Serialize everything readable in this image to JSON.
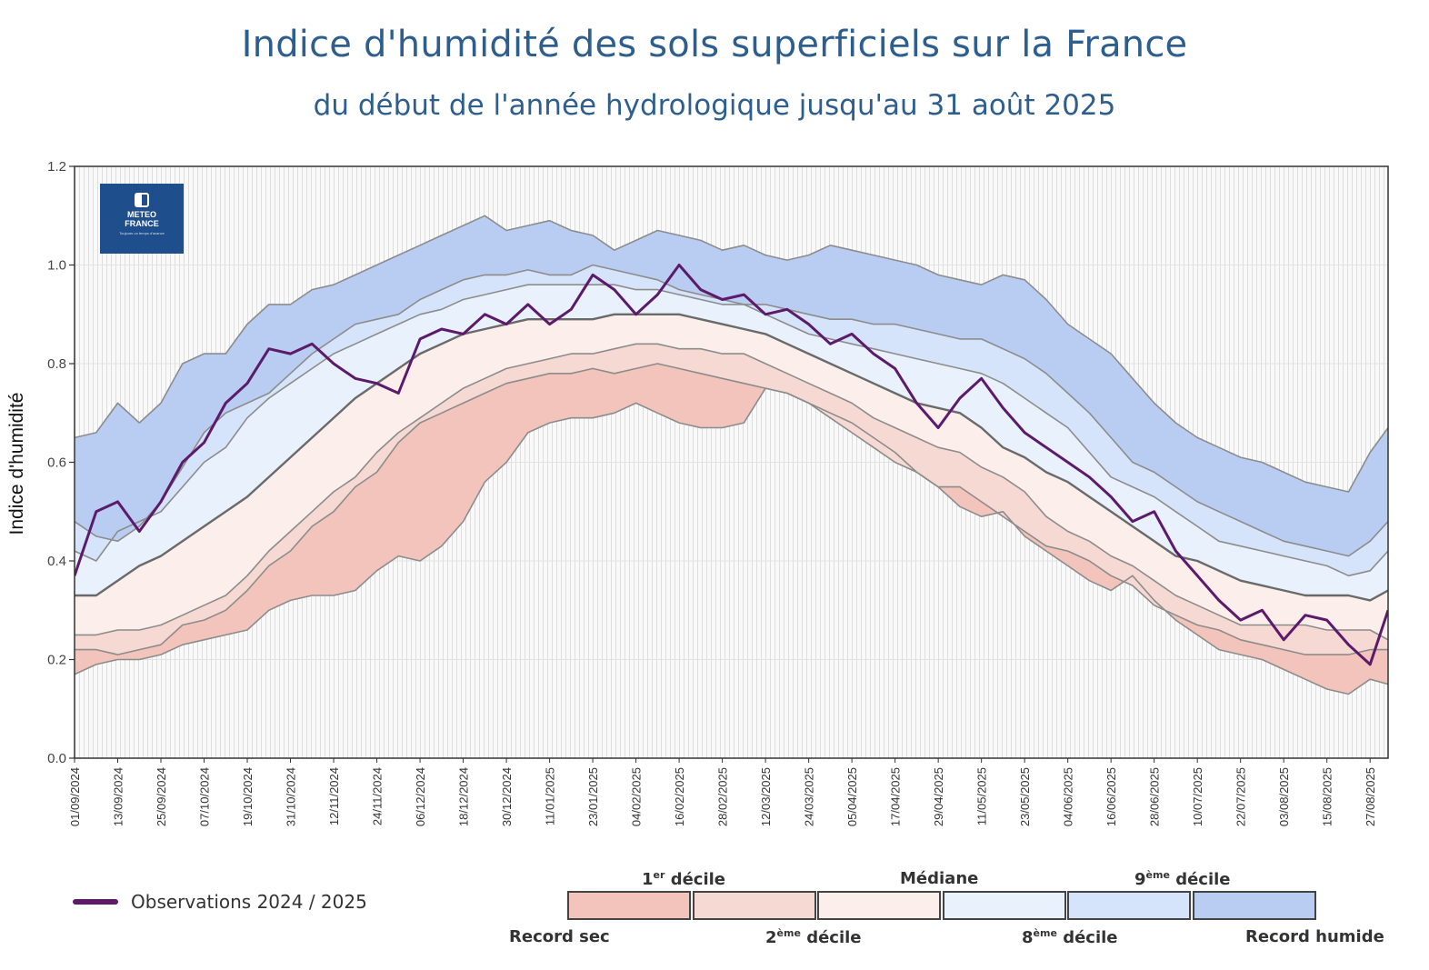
{
  "header": {
    "title": "Indice d'humidité des sols superficiels sur la France",
    "subtitle": "du début de l'année hydrologique jusqu'au 31 août 2025"
  },
  "logo": {
    "name_line1": "METEO",
    "name_line2": "FRANCE",
    "tagline": "Toujours un temps d'avance"
  },
  "colors": {
    "observation": "#5c1a6b",
    "record_sec": "#f2c4bb",
    "decile1_2": "#f6d9d2",
    "decile2_median": "#fcefeb",
    "median_decile8": "#e9f1fd",
    "decile8_9": "#d6e4fb",
    "decile9_record": "#b9cdf3",
    "band_line": "#6e6e6e"
  },
  "legend": {
    "observation_label": "Observations 2024 / 2025",
    "top_labels": [
      {
        "num": "1",
        "sup": "er",
        "text": " décile"
      },
      {
        "num": "",
        "sup": "",
        "text": "Médiane"
      },
      {
        "num": "9",
        "sup": "ème",
        "text": " décile"
      }
    ],
    "bottom_labels": [
      {
        "num": "",
        "sup": "",
        "text": "Record sec"
      },
      {
        "num": "2",
        "sup": "ème",
        "text": " décile"
      },
      {
        "num": "8",
        "sup": "ème",
        "text": " décile"
      },
      {
        "num": "",
        "sup": "",
        "text": "Record humide"
      }
    ]
  },
  "chart_data": {
    "type": "area",
    "title": "Indice d'humidité des sols superficiels sur la France",
    "subtitle": "du début de l'année hydrologique jusqu'au 31 août 2025",
    "xlabel": "",
    "ylabel": "Indice d'humidité",
    "ylim": [
      0.0,
      1.2
    ],
    "yticks": [
      "0.0",
      "0.2",
      "0.4",
      "0.6",
      "0.8",
      "1.0",
      "1.2"
    ],
    "x_day_range": [
      0,
      365
    ],
    "xtick_labels": [
      "01/09/2024",
      "13/09/2024",
      "25/09/2024",
      "07/10/2024",
      "19/10/2024",
      "31/10/2024",
      "12/11/2024",
      "24/11/2024",
      "06/12/2024",
      "18/12/2024",
      "30/12/2024",
      "11/01/2025",
      "23/01/2025",
      "04/02/2025",
      "16/02/2025",
      "28/02/2025",
      "12/03/2025",
      "24/03/2025",
      "05/04/2025",
      "17/04/2025",
      "29/04/2025",
      "11/05/2025",
      "23/05/2025",
      "04/06/2025",
      "16/06/2025",
      "28/06/2025",
      "10/07/2025",
      "22/07/2025",
      "03/08/2025",
      "15/08/2025",
      "27/08/2025"
    ],
    "grid": true,
    "legend_position": "bottom",
    "x_days": [
      0,
      6,
      12,
      18,
      24,
      30,
      36,
      42,
      48,
      54,
      60,
      66,
      72,
      78,
      84,
      90,
      96,
      102,
      108,
      114,
      120,
      126,
      132,
      138,
      144,
      150,
      156,
      162,
      168,
      174,
      180,
      186,
      192,
      198,
      204,
      210,
      216,
      222,
      228,
      234,
      240,
      246,
      252,
      258,
      264,
      270,
      276,
      282,
      288,
      294,
      300,
      306,
      312,
      318,
      324,
      330,
      336,
      342,
      348,
      354,
      360,
      365
    ],
    "series": [
      {
        "name": "Record sec",
        "values": [
          0.17,
          0.19,
          0.2,
          0.2,
          0.21,
          0.23,
          0.24,
          0.25,
          0.26,
          0.3,
          0.32,
          0.33,
          0.33,
          0.34,
          0.38,
          0.41,
          0.4,
          0.43,
          0.48,
          0.56,
          0.6,
          0.66,
          0.68,
          0.69,
          0.69,
          0.7,
          0.72,
          0.7,
          0.68,
          0.67,
          0.67,
          0.68,
          0.75,
          0.74,
          0.72,
          0.7,
          0.68,
          0.65,
          0.62,
          0.58,
          0.55,
          0.51,
          0.49,
          0.5,
          0.45,
          0.42,
          0.39,
          0.36,
          0.34,
          0.37,
          0.32,
          0.28,
          0.25,
          0.22,
          0.21,
          0.2,
          0.18,
          0.16,
          0.14,
          0.13,
          0.16,
          0.15
        ]
      },
      {
        "name": "1er décile",
        "values": [
          0.22,
          0.22,
          0.21,
          0.22,
          0.23,
          0.27,
          0.28,
          0.3,
          0.34,
          0.39,
          0.42,
          0.47,
          0.5,
          0.55,
          0.58,
          0.64,
          0.68,
          0.7,
          0.72,
          0.74,
          0.76,
          0.77,
          0.78,
          0.78,
          0.79,
          0.78,
          0.79,
          0.8,
          0.79,
          0.78,
          0.77,
          0.76,
          0.75,
          0.74,
          0.72,
          0.69,
          0.66,
          0.63,
          0.6,
          0.58,
          0.55,
          0.55,
          0.52,
          0.49,
          0.46,
          0.43,
          0.42,
          0.4,
          0.37,
          0.35,
          0.31,
          0.29,
          0.27,
          0.26,
          0.24,
          0.23,
          0.22,
          0.21,
          0.21,
          0.21,
          0.22,
          0.22
        ]
      },
      {
        "name": "2ème décile",
        "values": [
          0.25,
          0.25,
          0.26,
          0.26,
          0.27,
          0.29,
          0.31,
          0.33,
          0.37,
          0.42,
          0.46,
          0.5,
          0.54,
          0.57,
          0.62,
          0.66,
          0.69,
          0.72,
          0.75,
          0.77,
          0.79,
          0.8,
          0.81,
          0.82,
          0.82,
          0.83,
          0.84,
          0.84,
          0.83,
          0.83,
          0.82,
          0.82,
          0.8,
          0.78,
          0.76,
          0.74,
          0.72,
          0.69,
          0.67,
          0.65,
          0.63,
          0.62,
          0.59,
          0.57,
          0.54,
          0.49,
          0.46,
          0.44,
          0.41,
          0.39,
          0.36,
          0.33,
          0.31,
          0.29,
          0.27,
          0.27,
          0.27,
          0.27,
          0.26,
          0.26,
          0.26,
          0.24
        ]
      },
      {
        "name": "Médiane",
        "values": [
          0.33,
          0.33,
          0.36,
          0.39,
          0.41,
          0.44,
          0.47,
          0.5,
          0.53,
          0.57,
          0.61,
          0.65,
          0.69,
          0.73,
          0.76,
          0.79,
          0.82,
          0.84,
          0.86,
          0.87,
          0.88,
          0.89,
          0.89,
          0.89,
          0.89,
          0.9,
          0.9,
          0.9,
          0.9,
          0.89,
          0.88,
          0.87,
          0.86,
          0.84,
          0.82,
          0.8,
          0.78,
          0.76,
          0.74,
          0.72,
          0.71,
          0.7,
          0.67,
          0.63,
          0.61,
          0.58,
          0.56,
          0.53,
          0.5,
          0.47,
          0.44,
          0.41,
          0.4,
          0.38,
          0.36,
          0.35,
          0.34,
          0.33,
          0.33,
          0.33,
          0.32,
          0.34
        ]
      },
      {
        "name": "8ème décile",
        "values": [
          0.42,
          0.4,
          0.46,
          0.48,
          0.5,
          0.55,
          0.6,
          0.63,
          0.69,
          0.73,
          0.76,
          0.79,
          0.82,
          0.84,
          0.86,
          0.88,
          0.9,
          0.91,
          0.93,
          0.94,
          0.95,
          0.96,
          0.96,
          0.96,
          0.96,
          0.96,
          0.95,
          0.95,
          0.94,
          0.93,
          0.92,
          0.92,
          0.9,
          0.88,
          0.86,
          0.85,
          0.84,
          0.83,
          0.82,
          0.81,
          0.8,
          0.79,
          0.78,
          0.76,
          0.73,
          0.7,
          0.67,
          0.62,
          0.57,
          0.55,
          0.53,
          0.5,
          0.47,
          0.44,
          0.43,
          0.42,
          0.41,
          0.4,
          0.39,
          0.37,
          0.38,
          0.42
        ]
      },
      {
        "name": "9ème décile",
        "values": [
          0.48,
          0.45,
          0.44,
          0.47,
          0.52,
          0.59,
          0.66,
          0.7,
          0.72,
          0.74,
          0.78,
          0.82,
          0.85,
          0.88,
          0.89,
          0.9,
          0.93,
          0.95,
          0.97,
          0.98,
          0.98,
          0.99,
          0.98,
          0.98,
          1.0,
          0.99,
          0.98,
          0.97,
          0.95,
          0.94,
          0.93,
          0.92,
          0.92,
          0.91,
          0.9,
          0.89,
          0.89,
          0.88,
          0.88,
          0.87,
          0.86,
          0.85,
          0.85,
          0.83,
          0.81,
          0.78,
          0.74,
          0.7,
          0.65,
          0.6,
          0.58,
          0.55,
          0.52,
          0.5,
          0.48,
          0.46,
          0.44,
          0.43,
          0.42,
          0.41,
          0.44,
          0.48
        ]
      },
      {
        "name": "Record humide",
        "values": [
          0.65,
          0.66,
          0.72,
          0.68,
          0.72,
          0.8,
          0.82,
          0.82,
          0.88,
          0.92,
          0.92,
          0.95,
          0.96,
          0.98,
          1.0,
          1.02,
          1.04,
          1.06,
          1.08,
          1.1,
          1.07,
          1.08,
          1.09,
          1.07,
          1.06,
          1.03,
          1.05,
          1.07,
          1.06,
          1.05,
          1.03,
          1.04,
          1.02,
          1.01,
          1.02,
          1.04,
          1.03,
          1.02,
          1.01,
          1.0,
          0.98,
          0.97,
          0.96,
          0.98,
          0.97,
          0.93,
          0.88,
          0.85,
          0.82,
          0.77,
          0.72,
          0.68,
          0.65,
          0.63,
          0.61,
          0.6,
          0.58,
          0.56,
          0.55,
          0.54,
          0.62,
          0.67
        ]
      },
      {
        "name": "Observations 2024 / 2025",
        "values": [
          0.37,
          0.5,
          0.52,
          0.46,
          0.52,
          0.6,
          0.64,
          0.72,
          0.76,
          0.83,
          0.82,
          0.84,
          0.8,
          0.77,
          0.76,
          0.74,
          0.85,
          0.87,
          0.86,
          0.9,
          0.88,
          0.92,
          0.88,
          0.91,
          0.98,
          0.95,
          0.9,
          0.94,
          1.0,
          0.95,
          0.93,
          0.94,
          0.9,
          0.91,
          0.88,
          0.84,
          0.86,
          0.82,
          0.79,
          0.72,
          0.67,
          0.73,
          0.77,
          0.71,
          0.66,
          0.63,
          0.6,
          0.57,
          0.53,
          0.48,
          0.5,
          0.42,
          0.37,
          0.32,
          0.28,
          0.3,
          0.24,
          0.29,
          0.28,
          0.23,
          0.19,
          0.3
        ]
      }
    ]
  }
}
